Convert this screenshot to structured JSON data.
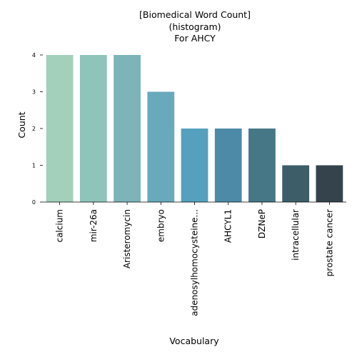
{
  "chart_data": {
    "type": "bar",
    "title_lines": [
      "[Biomedical Word Count]",
      "(histogram)",
      "For AHCY"
    ],
    "xlabel": "Vocabulary",
    "ylabel": "Count",
    "categories": [
      "calcium",
      "mir-26a",
      "Aristeromycin",
      "embryo",
      "adenosylhomocysteine...",
      "AHCYL1",
      "DZNeP",
      "intracellular",
      "prostate cancer"
    ],
    "values": [
      4,
      4,
      4,
      3,
      2,
      2,
      2,
      1,
      1
    ],
    "colors": [
      "#a2d0bb",
      "#8ec4ba",
      "#7cb4b8",
      "#68aabc",
      "#55a1bd",
      "#4d8aa8",
      "#457787",
      "#3d5e69",
      "#35444c"
    ],
    "y_ticks": [
      0,
      1,
      2,
      3,
      4
    ],
    "ylim": [
      0,
      4
    ],
    "grid": false,
    "legend": "none"
  }
}
